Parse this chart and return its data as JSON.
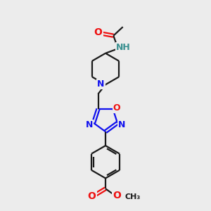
{
  "bg_color": "#ececec",
  "black": "#1a1a1a",
  "blue": "#1010ee",
  "red": "#ee1010",
  "teal": "#3a9090",
  "line_width": 1.6,
  "font_size_atom": 10,
  "font_size_small": 8,
  "fig_w": 3.0,
  "fig_h": 3.0,
  "dpi": 100,
  "xlim": [
    0,
    10
  ],
  "ylim": [
    0,
    10
  ]
}
